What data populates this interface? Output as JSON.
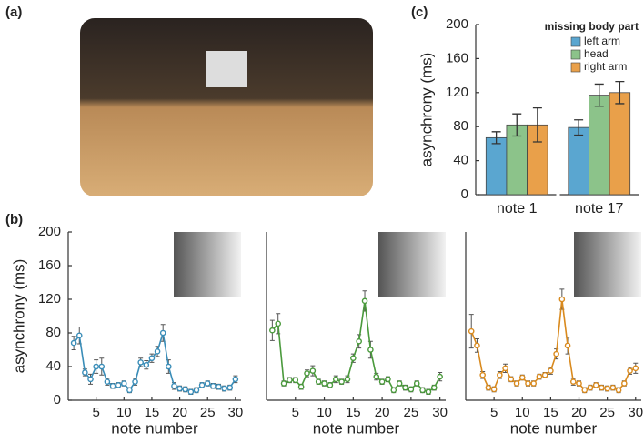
{
  "photo": {
    "label": "(a)"
  },
  "chart_data": [
    {
      "type": "bar",
      "panel_label": "(c)",
      "ylabel": "asynchrony (ms)",
      "legend_title": "missing body part",
      "categories": [
        "note 1",
        "note 17"
      ],
      "series": [
        {
          "name": "left arm",
          "color": "#5aa6d0",
          "values": [
            67,
            79
          ],
          "errors": [
            7,
            9
          ]
        },
        {
          "name": "head",
          "color": "#8cc38a",
          "values": [
            82,
            117
          ],
          "errors": [
            13,
            13
          ]
        },
        {
          "name": "right arm",
          "color": "#e9a04a",
          "values": [
            82,
            120
          ],
          "errors": [
            20,
            13
          ]
        }
      ],
      "ylim": [
        0,
        200
      ],
      "yticks": [
        0,
        40,
        80,
        120,
        160,
        200
      ]
    },
    {
      "type": "line",
      "panel_label": "(b)",
      "ylabel": "asynchrony (ms)",
      "xlabel": "note number",
      "x": [
        1,
        2,
        3,
        4,
        5,
        6,
        7,
        8,
        9,
        10,
        11,
        12,
        13,
        14,
        15,
        16,
        17,
        18,
        19,
        20,
        21,
        22,
        23,
        24,
        25,
        26,
        27,
        28,
        29,
        30
      ],
      "series": [
        {
          "color": "#3a8db8",
          "values": [
            68,
            77,
            33,
            25,
            40,
            40,
            22,
            17,
            18,
            20,
            12,
            22,
            45,
            42,
            50,
            58,
            80,
            40,
            17,
            14,
            13,
            10,
            12,
            18,
            20,
            17,
            16,
            14,
            15,
            25
          ],
          "errors": [
            8,
            10,
            4,
            6,
            8,
            10,
            4,
            3,
            3,
            3,
            3,
            4,
            5,
            5,
            5,
            6,
            10,
            8,
            4,
            3,
            3,
            3,
            3,
            3,
            3,
            3,
            3,
            3,
            3,
            4
          ]
        }
      ],
      "xlim": [
        0,
        31
      ],
      "ylim": [
        0,
        200
      ],
      "xticks": [
        5,
        10,
        15,
        20,
        25,
        30
      ],
      "yticks": [
        0,
        40,
        80,
        120,
        160,
        200
      ]
    },
    {
      "type": "line",
      "xlabel": "note number",
      "x": [
        1,
        2,
        3,
        4,
        5,
        6,
        7,
        8,
        9,
        10,
        11,
        12,
        13,
        14,
        15,
        16,
        17,
        18,
        19,
        20,
        21,
        22,
        23,
        24,
        25,
        26,
        27,
        28,
        29,
        30
      ],
      "series": [
        {
          "color": "#4a9a3c",
          "values": [
            83,
            91,
            20,
            24,
            24,
            16,
            32,
            35,
            22,
            20,
            18,
            25,
            22,
            25,
            50,
            70,
            118,
            60,
            28,
            22,
            25,
            12,
            20,
            15,
            13,
            20,
            12,
            10,
            15,
            28
          ],
          "errors": [
            12,
            12,
            3,
            3,
            3,
            3,
            4,
            6,
            3,
            3,
            3,
            4,
            3,
            4,
            5,
            8,
            12,
            10,
            4,
            3,
            3,
            3,
            3,
            3,
            3,
            3,
            3,
            3,
            3,
            5
          ]
        }
      ],
      "xlim": [
        0,
        31
      ],
      "ylim": [
        0,
        200
      ],
      "xticks": [
        5,
        10,
        15,
        20,
        25,
        30
      ]
    },
    {
      "type": "line",
      "xlabel": "note number",
      "x": [
        1,
        2,
        3,
        4,
        5,
        6,
        7,
        8,
        9,
        10,
        11,
        12,
        13,
        14,
        15,
        16,
        17,
        18,
        19,
        20,
        21,
        22,
        23,
        24,
        25,
        26,
        27,
        28,
        29,
        30
      ],
      "series": [
        {
          "color": "#d98a1e",
          "values": [
            82,
            65,
            30,
            15,
            13,
            30,
            38,
            25,
            20,
            27,
            20,
            20,
            28,
            30,
            35,
            55,
            120,
            65,
            22,
            20,
            12,
            15,
            18,
            15,
            14,
            15,
            12,
            20,
            35,
            38
          ],
          "errors": [
            20,
            8,
            4,
            3,
            3,
            4,
            5,
            3,
            3,
            3,
            3,
            3,
            3,
            3,
            4,
            6,
            12,
            10,
            4,
            3,
            3,
            3,
            3,
            3,
            3,
            3,
            3,
            3,
            4,
            6
          ]
        }
      ],
      "xlim": [
        0,
        31
      ],
      "ylim": [
        0,
        200
      ],
      "xticks": [
        5,
        10,
        15,
        20,
        25,
        30
      ]
    }
  ]
}
